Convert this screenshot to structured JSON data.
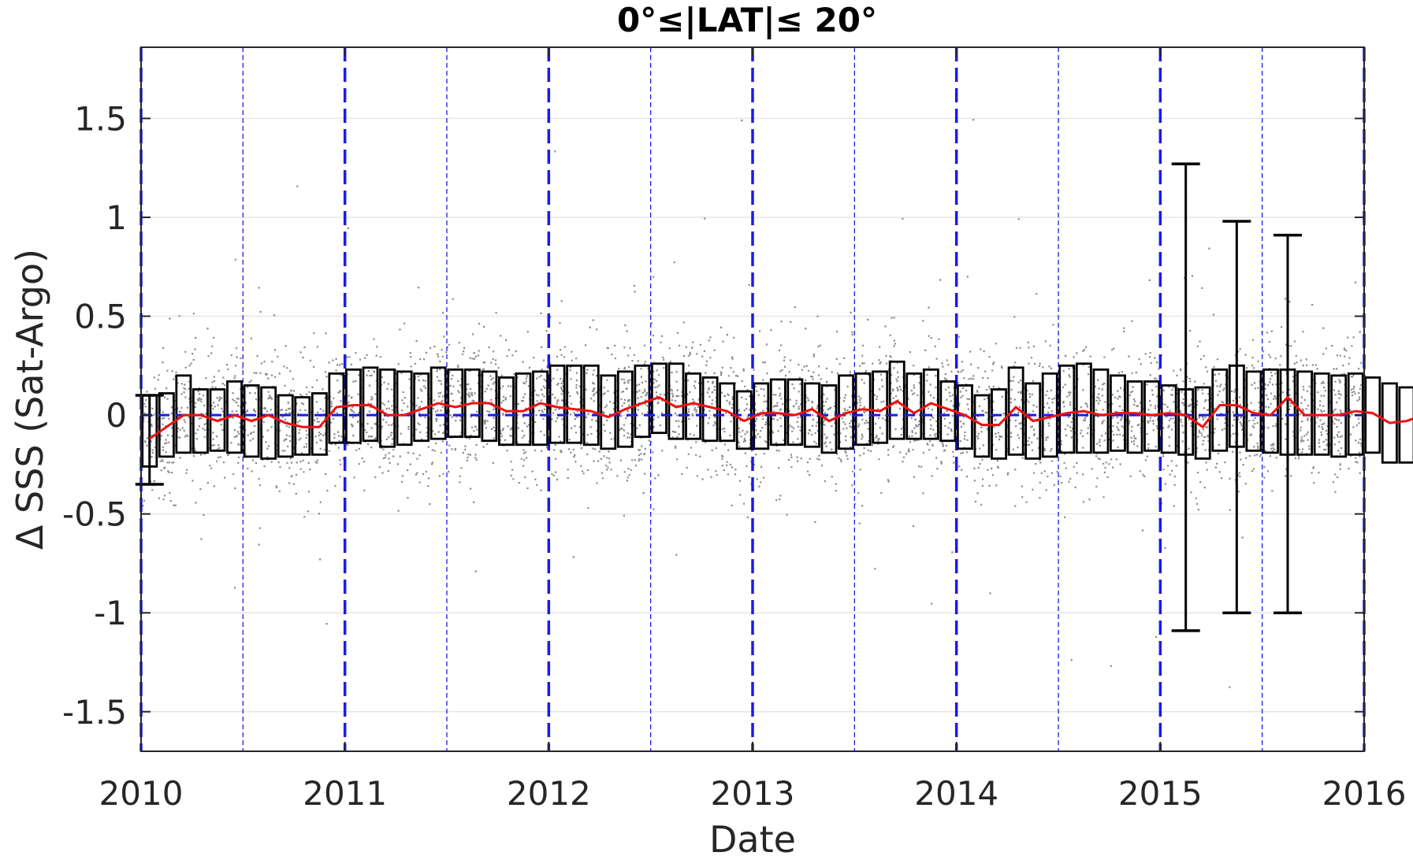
{
  "chart_data": {
    "type": "box-scatter",
    "title": "0°≤|LAT|≤ 20°",
    "xlabel": "Date",
    "ylabel": "Δ SSS (Sat-Argo)",
    "xlim": [
      2010,
      2016
    ],
    "ylim": [
      -1.7,
      1.86
    ],
    "x_ticks": [
      "2010",
      "2011",
      "2012",
      "2013",
      "2014",
      "2015",
      "2016"
    ],
    "y_ticks": [
      "1.5",
      "1",
      "0.5",
      "0",
      "-0.5",
      "-1",
      "-1.5"
    ],
    "grid": "horizontal",
    "reference_line_y": 0,
    "year_boundaries": [
      2010,
      2011,
      2012,
      2013,
      2014,
      2015,
      2016
    ],
    "mid_year_lines": [
      2010.5,
      2011.5,
      2012.5,
      2013.5,
      2014.5,
      2015.5
    ],
    "colors": {
      "scatter": "#808080",
      "box": "#000000",
      "median_line": "#ee1111",
      "reference_lines": "#1a1aee",
      "grid": "#e6e6e6",
      "axes": "#262626"
    },
    "boxes": {
      "period": "monthly",
      "start": "2010-01",
      "median": [
        -0.12,
        -0.06,
        0.0,
        0.0,
        -0.03,
        0.0,
        -0.03,
        0.0,
        -0.04,
        -0.06,
        -0.06,
        0.04,
        0.05,
        0.05,
        0.0,
        0.0,
        0.03,
        0.06,
        0.04,
        0.06,
        0.06,
        0.02,
        0.02,
        0.06,
        0.04,
        0.03,
        0.02,
        -0.01,
        0.03,
        0.06,
        0.09,
        0.04,
        0.06,
        0.04,
        0.02,
        -0.03,
        0.01,
        0.01,
        0.0,
        0.03,
        -0.03,
        0.01,
        0.03,
        0.02,
        0.07,
        0.01,
        0.06,
        0.03,
        0.0,
        -0.05,
        -0.05,
        0.04,
        -0.03,
        -0.01,
        0.01,
        0.02,
        0.0,
        0.01,
        0.01,
        0.0,
        0.01,
        0.0,
        -0.06,
        0.05,
        0.05,
        0.01,
        0.0,
        0.09,
        0.0,
        0.0,
        0.0,
        0.02,
        0.01,
        -0.04,
        -0.03,
        0.0,
        0.0,
        -0.02
      ],
      "q1": [
        -0.26,
        -0.21,
        -0.19,
        -0.19,
        -0.18,
        -0.19,
        -0.21,
        -0.22,
        -0.21,
        -0.2,
        -0.2,
        -0.14,
        -0.14,
        -0.13,
        -0.16,
        -0.15,
        -0.13,
        -0.12,
        -0.11,
        -0.11,
        -0.13,
        -0.15,
        -0.15,
        -0.15,
        -0.14,
        -0.14,
        -0.15,
        -0.17,
        -0.16,
        -0.11,
        -0.09,
        -0.12,
        -0.12,
        -0.13,
        -0.13,
        -0.17,
        -0.17,
        -0.15,
        -0.15,
        -0.16,
        -0.19,
        -0.17,
        -0.15,
        -0.14,
        -0.12,
        -0.12,
        -0.12,
        -0.13,
        -0.17,
        -0.21,
        -0.22,
        -0.2,
        -0.22,
        -0.21,
        -0.19,
        -0.19,
        -0.19,
        -0.18,
        -0.19,
        -0.18,
        -0.19,
        -0.2,
        -0.22,
        -0.18,
        -0.16,
        -0.18,
        -0.19,
        -0.2,
        -0.2,
        -0.2,
        -0.21,
        -0.2,
        -0.19,
        -0.24,
        -0.24,
        -0.22,
        -0.21,
        -0.2
      ],
      "q3": [
        0.1,
        0.11,
        0.2,
        0.13,
        0.13,
        0.17,
        0.15,
        0.14,
        0.1,
        0.09,
        0.11,
        0.21,
        0.23,
        0.24,
        0.23,
        0.22,
        0.21,
        0.24,
        0.23,
        0.23,
        0.22,
        0.19,
        0.21,
        0.22,
        0.25,
        0.25,
        0.25,
        0.2,
        0.22,
        0.25,
        0.26,
        0.26,
        0.21,
        0.19,
        0.16,
        0.12,
        0.16,
        0.18,
        0.18,
        0.16,
        0.15,
        0.2,
        0.21,
        0.22,
        0.27,
        0.21,
        0.23,
        0.17,
        0.15,
        0.1,
        0.13,
        0.24,
        0.16,
        0.21,
        0.25,
        0.26,
        0.23,
        0.2,
        0.17,
        0.17,
        0.15,
        0.13,
        0.14,
        0.23,
        0.25,
        0.22,
        0.23,
        0.23,
        0.22,
        0.21,
        0.2,
        0.21,
        0.19,
        0.16,
        0.14,
        0.2,
        0.22,
        0.16
      ],
      "whiskers_shown_at": [
        "2010-01",
        "2015-02",
        "2015-05",
        "2015-08"
      ],
      "whisker_low": [
        -0.35,
        -1.09,
        -1.0,
        -1.0
      ],
      "whisker_high": [
        0.1,
        1.27,
        0.98,
        0.91
      ]
    },
    "scatter": {
      "description_note_free": true,
      "bulk_range": [
        -0.6,
        0.6
      ]
    }
  }
}
